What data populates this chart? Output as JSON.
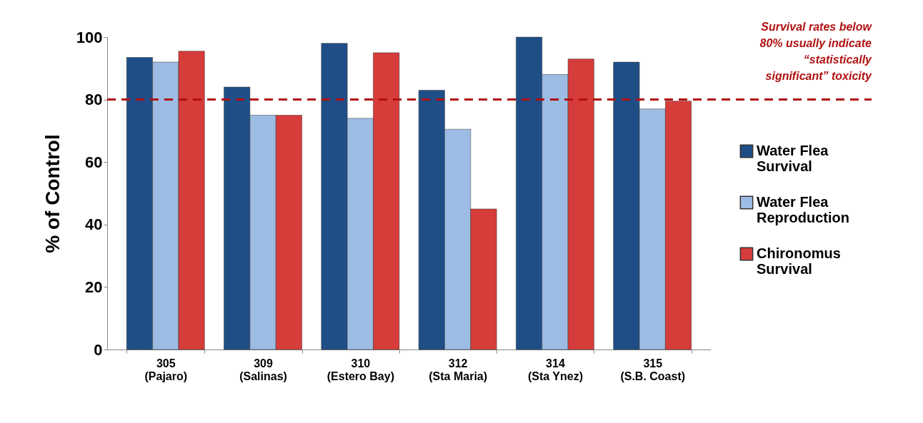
{
  "chart_data": {
    "type": "bar",
    "ylabel": "% of Control",
    "categories": [
      "305\n(Pajaro)",
      "309\n(Salinas)",
      "310\n(Estero Bay)",
      "312\n(Sta Maria)",
      "314\n(Sta Ynez)",
      "315\n(S.B. Coast)"
    ],
    "series": [
      {
        "name": "Water Flea\nSurvival",
        "color": "#1f4e86",
        "values": [
          93.5,
          84,
          98,
          83,
          100,
          92
        ]
      },
      {
        "name": "Water Flea\nReproduction",
        "color": "#9dbce3",
        "values": [
          92,
          75,
          74,
          70.5,
          88,
          77
        ]
      },
      {
        "name": "Chironomus\nSurvival",
        "color": "#d63c3a",
        "values": [
          95.5,
          75,
          95,
          45,
          93,
          79.5
        ]
      }
    ],
    "ylim": [
      0,
      100
    ],
    "yticks": [
      0,
      20,
      40,
      60,
      80,
      100
    ],
    "grid": false,
    "legend": "right",
    "ref_lines": [
      {
        "axis": "y",
        "value": 80,
        "label": "Survival rates below\n80% usually indicate\n“statistically\nsignificant” toxicity",
        "color": "#b01010",
        "line_style": "dashed"
      }
    ]
  }
}
